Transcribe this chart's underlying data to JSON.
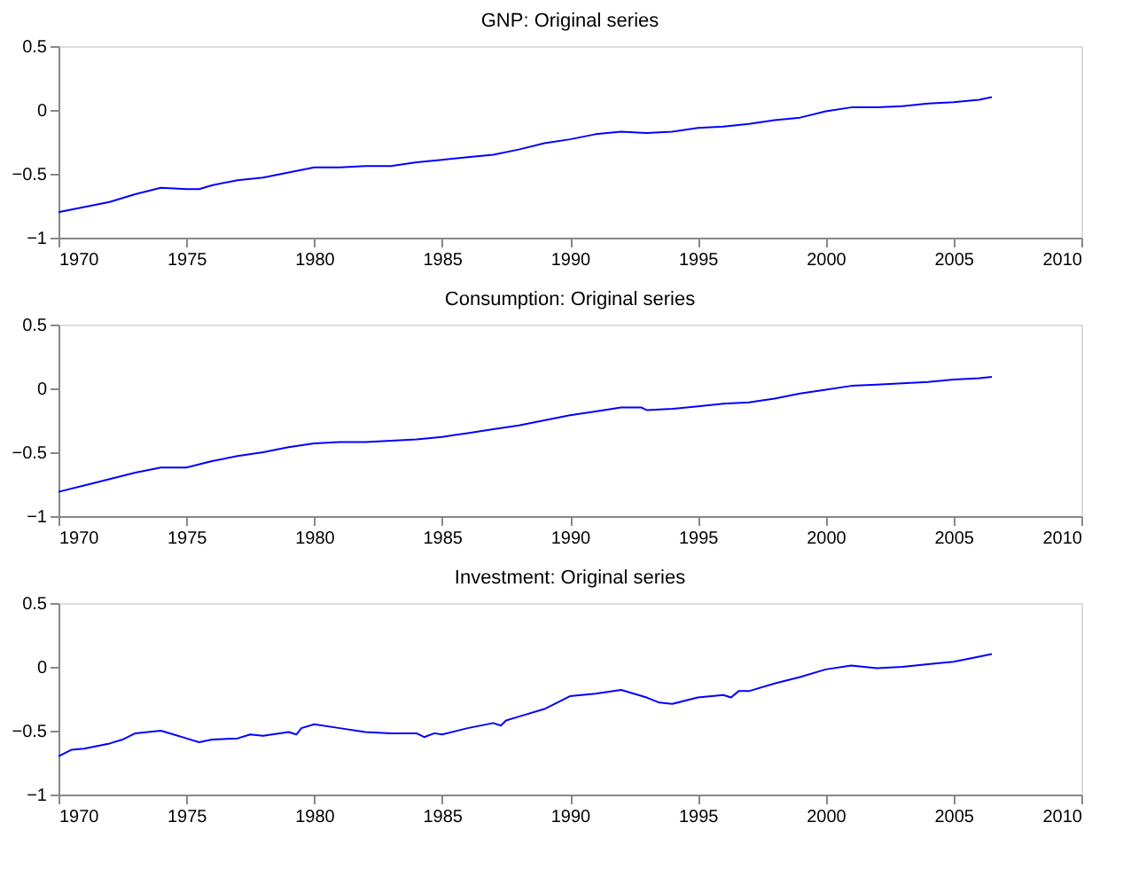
{
  "chart_data": [
    {
      "type": "line",
      "title": "GNP: Original series",
      "xlim": [
        1970,
        2010
      ],
      "xticks": [
        1970,
        1975,
        1980,
        1985,
        1990,
        1995,
        2000,
        2005,
        2010
      ],
      "ylim": [
        -1,
        0.5
      ],
      "yticks": [
        -1,
        -0.5,
        0,
        0.5
      ],
      "grid": false,
      "series": [
        {
          "color": "#0000ff",
          "x": [
            1970,
            1971,
            1972,
            1973,
            1974,
            1975,
            1975.5,
            1976,
            1977,
            1978,
            1979,
            1980,
            1981,
            1982,
            1983,
            1984,
            1985,
            1986,
            1987,
            1988,
            1989,
            1990,
            1991,
            1992,
            1993,
            1994,
            1995,
            1996,
            1997,
            1998,
            1999,
            2000,
            2001,
            2002,
            2003,
            2004,
            2005,
            2006,
            2006.5
          ],
          "values": [
            -0.8,
            -0.76,
            -0.72,
            -0.66,
            -0.61,
            -0.62,
            -0.62,
            -0.59,
            -0.55,
            -0.53,
            -0.49,
            -0.45,
            -0.45,
            -0.44,
            -0.44,
            -0.41,
            -0.39,
            -0.37,
            -0.35,
            -0.31,
            -0.26,
            -0.23,
            -0.19,
            -0.17,
            -0.18,
            -0.17,
            -0.14,
            -0.13,
            -0.11,
            -0.08,
            -0.06,
            -0.01,
            0.02,
            0.02,
            0.03,
            0.05,
            0.06,
            0.08,
            0.1
          ]
        }
      ]
    },
    {
      "type": "line",
      "title": "Consumption: Original series",
      "xlim": [
        1970,
        2010
      ],
      "xticks": [
        1970,
        1975,
        1980,
        1985,
        1990,
        1995,
        2000,
        2005,
        2010
      ],
      "ylim": [
        -1,
        0.5
      ],
      "yticks": [
        -1,
        -0.5,
        0,
        0.5
      ],
      "grid": false,
      "series": [
        {
          "color": "#0000ff",
          "x": [
            1970,
            1971,
            1972,
            1973,
            1974,
            1975,
            1976,
            1977,
            1978,
            1979,
            1980,
            1981,
            1982,
            1983,
            1984,
            1985,
            1986,
            1987,
            1988,
            1989,
            1990,
            1991,
            1992,
            1992.8,
            1993,
            1994,
            1995,
            1996,
            1997,
            1998,
            1999,
            2000,
            2001,
            2002,
            2003,
            2004,
            2005,
            2006,
            2006.5
          ],
          "values": [
            -0.81,
            -0.76,
            -0.71,
            -0.66,
            -0.62,
            -0.62,
            -0.57,
            -0.53,
            -0.5,
            -0.46,
            -0.43,
            -0.42,
            -0.42,
            -0.41,
            -0.4,
            -0.38,
            -0.35,
            -0.32,
            -0.29,
            -0.25,
            -0.21,
            -0.18,
            -0.15,
            -0.15,
            -0.17,
            -0.16,
            -0.14,
            -0.12,
            -0.11,
            -0.08,
            -0.04,
            -0.01,
            0.02,
            0.03,
            0.04,
            0.05,
            0.07,
            0.08,
            0.09
          ]
        }
      ]
    },
    {
      "type": "line",
      "title": "Investment: Original series",
      "xlim": [
        1970,
        2010
      ],
      "xticks": [
        1970,
        1975,
        1980,
        1985,
        1990,
        1995,
        2000,
        2005,
        2010
      ],
      "ylim": [
        -1,
        0.5
      ],
      "yticks": [
        -1,
        -0.5,
        0,
        0.5
      ],
      "grid": false,
      "series": [
        {
          "color": "#0000ff",
          "x": [
            1970,
            1970.5,
            1971,
            1972,
            1972.5,
            1973,
            1974,
            1974.5,
            1975,
            1975.5,
            1976,
            1977,
            1977.5,
            1978,
            1979,
            1979.3,
            1979.5,
            1980,
            1981,
            1982,
            1983,
            1984,
            1984.3,
            1984.7,
            1985,
            1986,
            1987,
            1987.3,
            1987.5,
            1988,
            1989,
            1990,
            1991,
            1992,
            1993,
            1993.5,
            1994,
            1995,
            1996,
            1996.3,
            1996.6,
            1997,
            1998,
            1999,
            2000,
            2001,
            2002,
            2003,
            2004,
            2005,
            2006,
            2006.5
          ],
          "values": [
            -0.7,
            -0.65,
            -0.64,
            -0.6,
            -0.57,
            -0.52,
            -0.5,
            -0.53,
            -0.56,
            -0.59,
            -0.57,
            -0.56,
            -0.53,
            -0.54,
            -0.51,
            -0.53,
            -0.48,
            -0.45,
            -0.48,
            -0.51,
            -0.52,
            -0.52,
            -0.55,
            -0.52,
            -0.53,
            -0.48,
            -0.44,
            -0.46,
            -0.42,
            -0.39,
            -0.33,
            -0.23,
            -0.21,
            -0.18,
            -0.24,
            -0.28,
            -0.29,
            -0.24,
            -0.22,
            -0.24,
            -0.19,
            -0.19,
            -0.13,
            -0.08,
            -0.02,
            0.01,
            -0.01,
            0.0,
            0.02,
            0.04,
            0.08,
            0.1
          ]
        }
      ]
    }
  ]
}
